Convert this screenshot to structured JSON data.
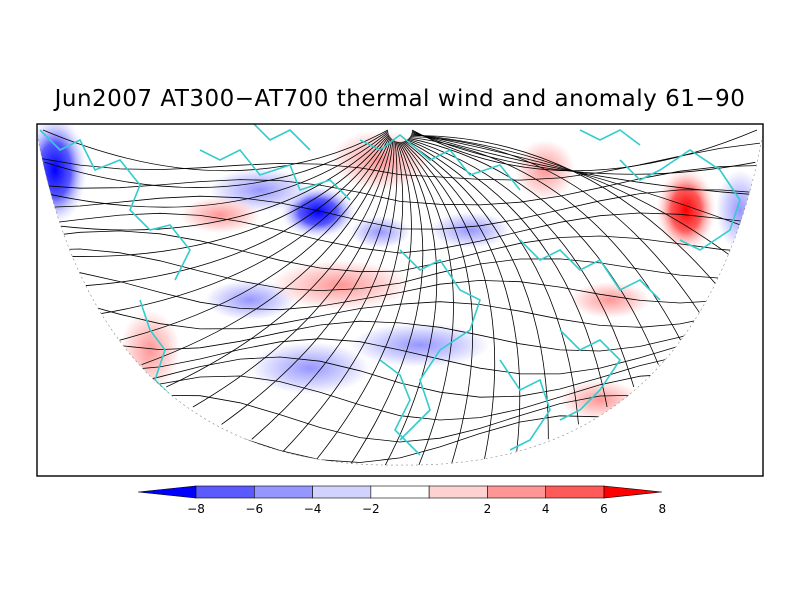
{
  "title": "Jun2007 AT300−AT700 thermal wind and anomaly 61−90",
  "colorbar": {
    "tick_labels": [
      "−8",
      "−6",
      "−4",
      "−2",
      "2",
      "4",
      "6",
      "8"
    ],
    "bins": [
      {
        "color": "#0000ff"
      },
      {
        "color": "#5a5aff"
      },
      {
        "color": "#9696ff"
      },
      {
        "color": "#d2d2ff"
      },
      {
        "color": "#ffffff"
      },
      {
        "color": "#ffd2d2"
      },
      {
        "color": "#ff9696"
      },
      {
        "color": "#ff5a5a"
      },
      {
        "color": "#ff0000"
      }
    ]
  },
  "colors": {
    "coastline": "#33cccc",
    "streamline": "#000000",
    "frame": "#000000"
  }
}
